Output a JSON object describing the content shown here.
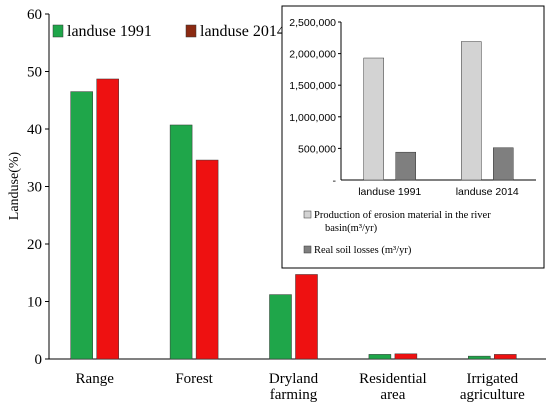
{
  "chart_data": [
    {
      "type": "bar",
      "ylabel": "Landuse(%)",
      "ylim": [
        0,
        60
      ],
      "yticks": [
        0,
        10,
        20,
        30,
        40,
        50,
        60
      ],
      "categories": [
        "Range",
        "Forest",
        "Dryland farming",
        "Residential area",
        "Irrigated agriculture"
      ],
      "category_lines": [
        [
          "Range"
        ],
        [
          "Forest"
        ],
        [
          "Dryland",
          "farming"
        ],
        [
          "Residential",
          "area"
        ],
        [
          "Irrigated",
          "agriculture"
        ]
      ],
      "legend_position": "top-left",
      "series": [
        {
          "name": "landuse 1991",
          "values": [
            46.5,
            40.7,
            11.2,
            0.8,
            0.5
          ],
          "fill": "#1fa64a",
          "legend_fill": "#1fa64a"
        },
        {
          "name": "landuse 2014",
          "values": [
            48.7,
            34.6,
            14.7,
            0.9,
            0.8
          ],
          "fill": "#ee1111",
          "legend_fill": "#8b2a12"
        }
      ]
    },
    {
      "type": "bar",
      "ylim": [
        0,
        2500000
      ],
      "yticks": [
        500000,
        1000000,
        1500000,
        2000000,
        2500000
      ],
      "ytick_labels": [
        "500,000",
        "1,000,000",
        "1,500,000",
        "2,000,000",
        "2,500,000"
      ],
      "categories": [
        "landuse 1991",
        "landuse 2014"
      ],
      "legend_position": "bottom",
      "series": [
        {
          "name_lines": [
            "Production of erosion material in the river",
            "basin(m³/yr)"
          ],
          "values": [
            1930000,
            2190000
          ],
          "fill": "#d3d3d3"
        },
        {
          "name_lines": [
            "Real soil losses (m³/yr)"
          ],
          "values": [
            440000,
            510000
          ],
          "fill": "#7f7f7f"
        }
      ]
    }
  ]
}
